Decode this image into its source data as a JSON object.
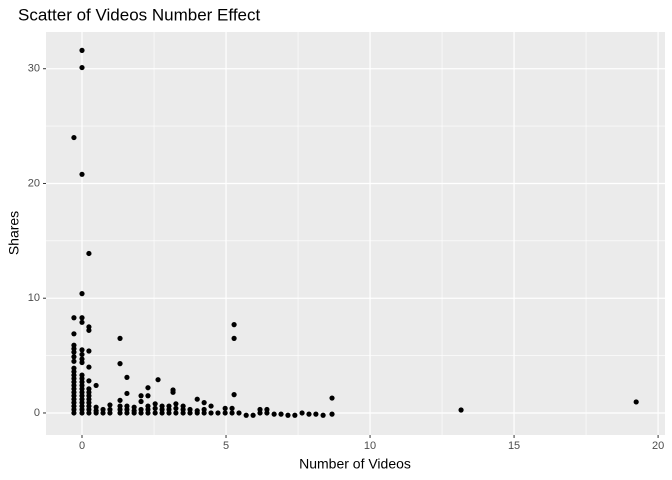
{
  "chart_data": {
    "type": "scatter",
    "title": "Scatter of Videos Number Effect",
    "x_label": "Number of Videos",
    "y_label": "Shares",
    "color": "#000000",
    "grid": true,
    "xlim": [
      -1.25,
      20.24
    ],
    "ylim": [
      -1.92,
      33.2
    ],
    "xticks": [
      0,
      5,
      10,
      15,
      20
    ],
    "yticks": [
      0,
      10,
      20,
      30
    ],
    "x": [
      -0.28,
      -0.28,
      -0.28,
      -0.28,
      -0.28,
      -0.28,
      -0.28,
      -0.28,
      -0.28,
      -0.28,
      -0.28,
      -0.28,
      -0.28,
      -0.28,
      -0.28,
      -0.28,
      -0.28,
      -0.28,
      -0.28,
      -0.28,
      -0.28,
      -0.28,
      0,
      0,
      0,
      0,
      0,
      0,
      0,
      0,
      0,
      0,
      0,
      0,
      0,
      0,
      0,
      0,
      0,
      0,
      0,
      0,
      0,
      0,
      0.24,
      0.24,
      0.24,
      0.24,
      0.24,
      0.24,
      0.24,
      0.24,
      0.24,
      0.24,
      0.24,
      0.24,
      0.24,
      0.24,
      0.49,
      0.49,
      0.49,
      0.49,
      0.73,
      0.73,
      0.97,
      0.97,
      0.97,
      1.32,
      1.32,
      1.32,
      1.32,
      1.32,
      1.32,
      1.56,
      1.56,
      1.56,
      1.56,
      1.56,
      1.81,
      1.81,
      1.81,
      2.05,
      2.05,
      2.05,
      2.05,
      2.29,
      2.29,
      2.29,
      2.29,
      2.29,
      2.54,
      2.54,
      2.54,
      2.64,
      2.78,
      2.78,
      2.78,
      3.02,
      3.02,
      3.02,
      3.16,
      3.16,
      3.26,
      3.26,
      3.26,
      3.51,
      3.51,
      3.51,
      3.75,
      3.75,
      4.0,
      4.0,
      4.0,
      4.24,
      4.24,
      4.24,
      4.48,
      4.48,
      4.72,
      4.97,
      4.97,
      5.21,
      5.21,
      5.28,
      5.28,
      5.28,
      5.45,
      5.7,
      5.94,
      6.18,
      6.18,
      6.42,
      6.42,
      6.67,
      6.91,
      7.15,
      7.39,
      7.64,
      7.88,
      8.12,
      8.37,
      8.68,
      8.68,
      13.16,
      19.24
    ],
    "values": [
      0,
      0.3,
      0.6,
      0.9,
      1.2,
      1.5,
      1.8,
      2.1,
      2.4,
      2.7,
      3.0,
      3.3,
      3.6,
      3.9,
      4.5,
      4.9,
      5.3,
      5.6,
      5.9,
      6.9,
      8.3,
      24.0,
      0,
      0.3,
      0.6,
      0.9,
      1.2,
      1.5,
      1.8,
      2.1,
      2.4,
      2.7,
      3.0,
      3.3,
      4.4,
      4.7,
      5.1,
      5.5,
      7.9,
      8.3,
      10.4,
      20.8,
      30.1,
      31.6,
      0,
      0.3,
      0.6,
      0.9,
      1.2,
      1.5,
      1.8,
      2.1,
      2.8,
      4.0,
      5.4,
      7.2,
      7.5,
      13.9,
      0,
      0.2,
      0.5,
      2.4,
      0,
      0.3,
      0,
      0.3,
      0.7,
      0,
      0.3,
      0.6,
      1.1,
      4.3,
      6.5,
      0,
      0.3,
      0.6,
      1.7,
      3.1,
      0,
      0.2,
      0.5,
      0,
      0.3,
      1.0,
      1.5,
      0,
      0.3,
      0.6,
      1.5,
      2.2,
      0,
      0.4,
      0.8,
      2.9,
      0,
      0.3,
      0.6,
      0,
      0.3,
      0.6,
      1.8,
      2.0,
      0,
      0.4,
      0.8,
      0,
      0.3,
      0.6,
      0,
      0.3,
      0,
      0.2,
      1.2,
      0,
      0.3,
      0.9,
      0,
      0.6,
      0,
      0,
      0.4,
      0,
      0.4,
      1.6,
      6.5,
      7.7,
      0,
      -0.2,
      -0.2,
      0,
      0.3,
      0,
      0.3,
      -0.1,
      -0.1,
      -0.2,
      -0.2,
      0,
      -0.1,
      -0.1,
      -0.2,
      -0.1,
      1.3,
      0.26,
      0.96
    ]
  }
}
